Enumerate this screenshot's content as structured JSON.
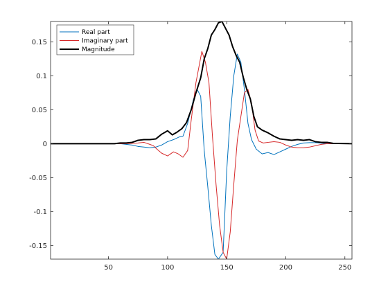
{
  "chart_data": {
    "type": "line",
    "title": "",
    "xlabel": "",
    "ylabel": "",
    "xlim": [
      1,
      256
    ],
    "ylim": [
      -0.17,
      0.18
    ],
    "x_ticks": [
      50,
      100,
      150,
      200,
      250
    ],
    "y_ticks": [
      -0.15,
      -0.1,
      -0.05,
      0,
      0.05,
      0.1,
      0.15
    ],
    "y_tick_labels": [
      "-0.15",
      "-0.1",
      "-0.05",
      "0",
      "0.05",
      "0.1",
      "0.15"
    ],
    "grid": false,
    "legend_position": "top-left",
    "series": [
      {
        "name": "Real part",
        "color": "#0072BD",
        "line_width": 1,
        "points": [
          [
            1,
            0
          ],
          [
            55,
            0
          ],
          [
            60,
            0
          ],
          [
            65,
            -0.001
          ],
          [
            70,
            -0.002
          ],
          [
            75,
            -0.004
          ],
          [
            80,
            -0.005
          ],
          [
            85,
            -0.006
          ],
          [
            90,
            -0.005
          ],
          [
            95,
            -0.002
          ],
          [
            100,
            0.003
          ],
          [
            105,
            0.006
          ],
          [
            110,
            0.01
          ],
          [
            113,
            0.011
          ],
          [
            117,
            0.03
          ],
          [
            122,
            0.066
          ],
          [
            125,
            0.08
          ],
          [
            128,
            0.07
          ],
          [
            131,
            -0.01
          ],
          [
            134,
            -0.063
          ],
          [
            137,
            -0.12
          ],
          [
            140,
            -0.163
          ],
          [
            143,
            -0.17
          ],
          [
            147,
            -0.16
          ],
          [
            150,
            -0.04
          ],
          [
            153,
            0.04
          ],
          [
            156,
            0.1
          ],
          [
            159,
            0.132
          ],
          [
            162,
            0.12
          ],
          [
            165,
            0.08
          ],
          [
            168,
            0.03
          ],
          [
            171,
            0.006
          ],
          [
            175,
            -0.008
          ],
          [
            180,
            -0.015
          ],
          [
            185,
            -0.013
          ],
          [
            190,
            -0.016
          ],
          [
            195,
            -0.012
          ],
          [
            200,
            -0.008
          ],
          [
            205,
            -0.004
          ],
          [
            210,
            -0.001
          ],
          [
            215,
            0.001
          ],
          [
            220,
            0.0015
          ],
          [
            225,
            0.0015
          ],
          [
            230,
            0.0008
          ],
          [
            235,
            0
          ],
          [
            256,
            0
          ]
        ]
      },
      {
        "name": "Imaginary part",
        "color": "#D62728",
        "line_width": 1,
        "points": [
          [
            1,
            0
          ],
          [
            55,
            0
          ],
          [
            60,
            0
          ],
          [
            65,
            0
          ],
          [
            70,
            0.0005
          ],
          [
            75,
            0.001
          ],
          [
            80,
            0.002
          ],
          [
            85,
            -0.001
          ],
          [
            88,
            -0.003
          ],
          [
            91,
            -0.008
          ],
          [
            95,
            -0.014
          ],
          [
            100,
            -0.018
          ],
          [
            105,
            -0.012
          ],
          [
            109,
            -0.015
          ],
          [
            113,
            -0.02
          ],
          [
            117,
            -0.01
          ],
          [
            120,
            0.035
          ],
          [
            124,
            0.09
          ],
          [
            129,
            0.136
          ],
          [
            132,
            0.12
          ],
          [
            135,
            0.09
          ],
          [
            138,
            0.01
          ],
          [
            141,
            -0.06
          ],
          [
            144,
            -0.12
          ],
          [
            147,
            -0.16
          ],
          [
            150,
            -0.17
          ],
          [
            153,
            -0.13
          ],
          [
            156,
            -0.06
          ],
          [
            159,
            0.005
          ],
          [
            162,
            0.04
          ],
          [
            165,
            0.075
          ],
          [
            168,
            0.08
          ],
          [
            171,
            0.06
          ],
          [
            174,
            0.02
          ],
          [
            177,
            0.004
          ],
          [
            181,
            0.001
          ],
          [
            185,
            0.002
          ],
          [
            190,
            0.003
          ],
          [
            195,
            0.002
          ],
          [
            200,
            -0.002
          ],
          [
            205,
            -0.005
          ],
          [
            210,
            -0.006
          ],
          [
            215,
            -0.006
          ],
          [
            220,
            -0.005
          ],
          [
            225,
            -0.003
          ],
          [
            230,
            -0.001
          ],
          [
            235,
            0
          ],
          [
            256,
            0
          ]
        ]
      },
      {
        "name": "Magnitude",
        "color": "#000000",
        "line_width": 2,
        "points": [
          [
            1,
            0
          ],
          [
            55,
            0
          ],
          [
            60,
            0.001
          ],
          [
            65,
            0.001
          ],
          [
            70,
            0.002
          ],
          [
            75,
            0.005
          ],
          [
            80,
            0.006
          ],
          [
            85,
            0.006
          ],
          [
            90,
            0.007
          ],
          [
            95,
            0.014
          ],
          [
            100,
            0.019
          ],
          [
            104,
            0.013
          ],
          [
            108,
            0.017
          ],
          [
            112,
            0.022
          ],
          [
            116,
            0.031
          ],
          [
            120,
            0.05
          ],
          [
            124,
            0.075
          ],
          [
            128,
            0.097
          ],
          [
            131,
            0.125
          ],
          [
            134,
            0.14
          ],
          [
            137,
            0.16
          ],
          [
            140,
            0.168
          ],
          [
            143,
            0.178
          ],
          [
            146,
            0.18
          ],
          [
            149,
            0.17
          ],
          [
            152,
            0.16
          ],
          [
            155,
            0.143
          ],
          [
            158,
            0.13
          ],
          [
            161,
            0.12
          ],
          [
            164,
            0.098
          ],
          [
            167,
            0.08
          ],
          [
            170,
            0.066
          ],
          [
            173,
            0.04
          ],
          [
            176,
            0.025
          ],
          [
            180,
            0.02
          ],
          [
            185,
            0.016
          ],
          [
            190,
            0.011
          ],
          [
            195,
            0.007
          ],
          [
            200,
            0.006
          ],
          [
            205,
            0.005
          ],
          [
            210,
            0.006
          ],
          [
            215,
            0.005
          ],
          [
            220,
            0.006
          ],
          [
            225,
            0.003
          ],
          [
            230,
            0.002
          ],
          [
            235,
            0.002
          ],
          [
            240,
            0.0005
          ],
          [
            256,
            0
          ]
        ]
      }
    ]
  }
}
